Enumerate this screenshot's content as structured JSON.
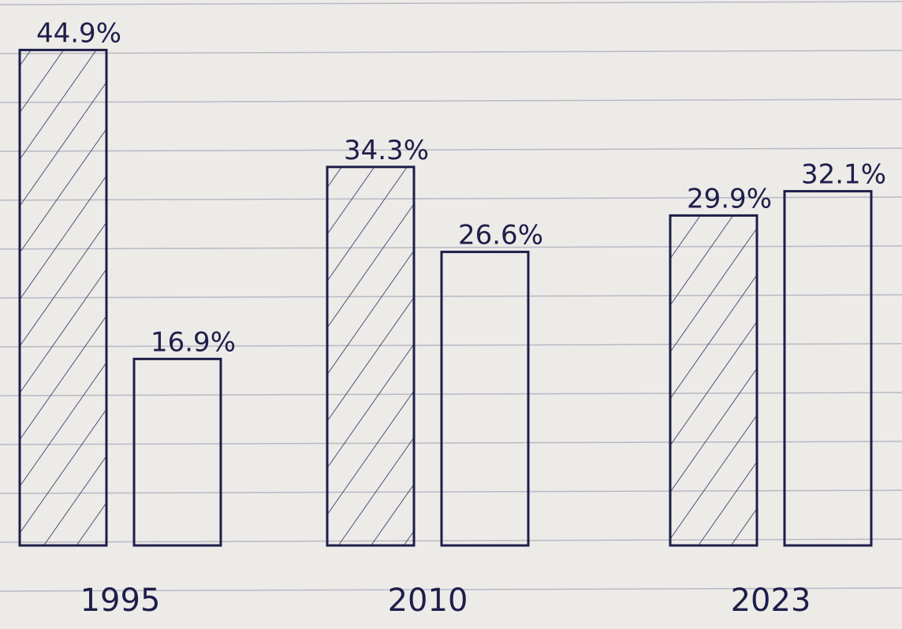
{
  "chart_data": {
    "type": "bar",
    "categories": [
      "1995",
      "2010",
      "2023"
    ],
    "color": "#1e1e4a",
    "series": [
      {
        "values": [
          44.9,
          34.3,
          29.9
        ],
        "value_labels": [
          "44.9%",
          "34.3%",
          "29.9%"
        ],
        "pattern": "hatched"
      },
      {
        "values": [
          16.9,
          26.6,
          32.1
        ],
        "value_labels": [
          "16.9%",
          "26.6%",
          "32.1%"
        ],
        "pattern": "plain"
      }
    ]
  }
}
